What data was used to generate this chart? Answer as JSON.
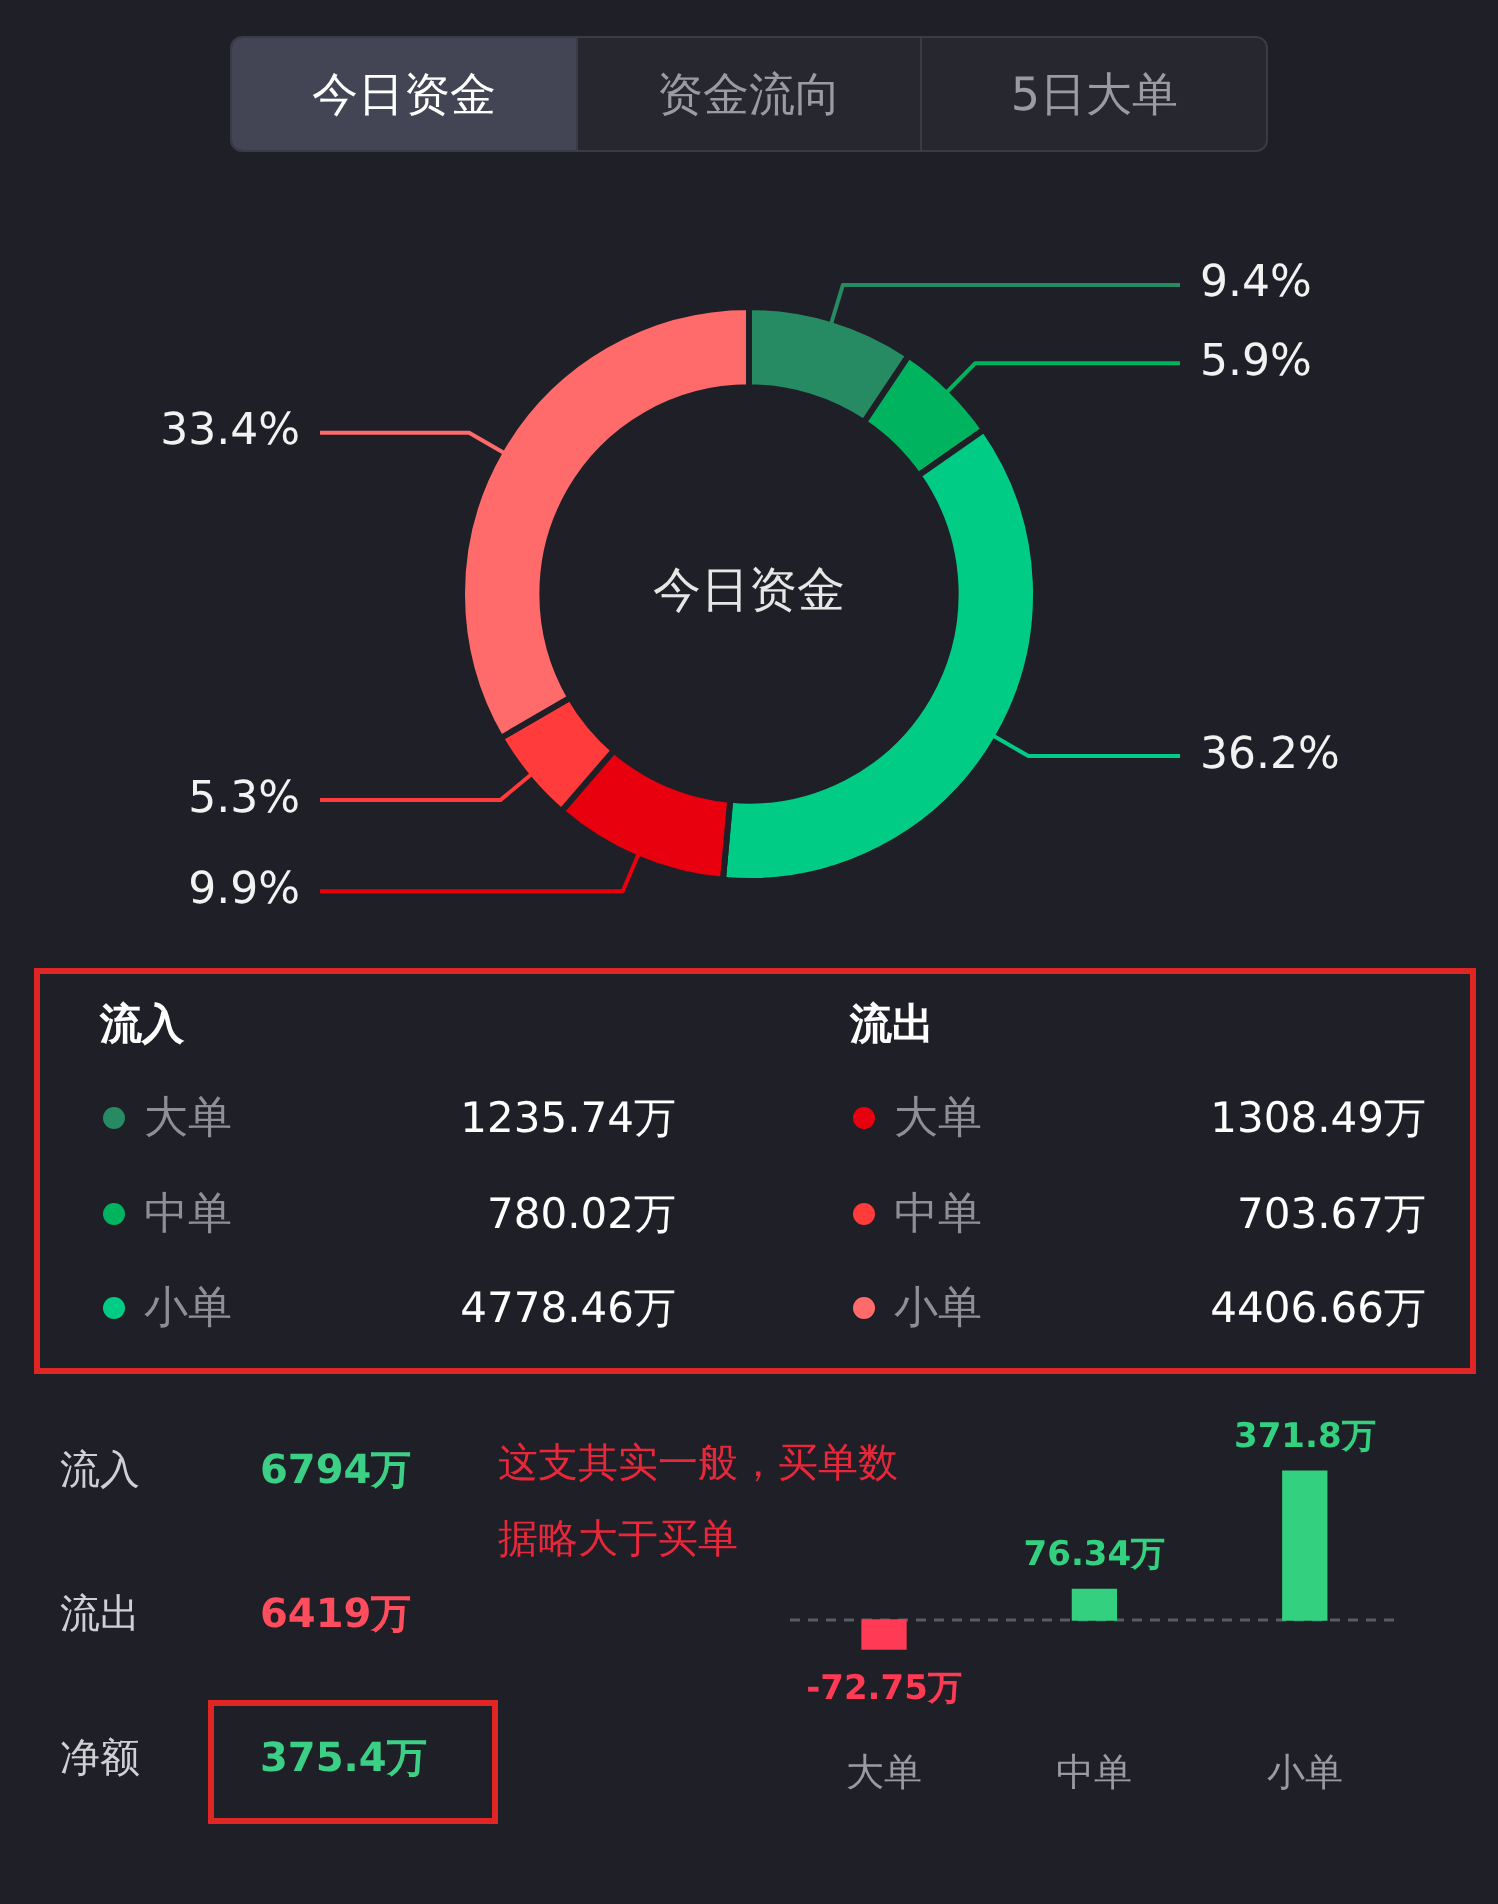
{
  "chart_data": [
    {
      "type": "other",
      "annotations": [
        "今日资金",
        "资金流向",
        "5日大单"
      ]
    },
    {
      "type": "donut",
      "title": "今日资金",
      "categories": [
        null,
        null,
        null,
        null,
        null,
        null
      ],
      "values": [
        9.4,
        5.9,
        36.2,
        9.9,
        5.3,
        33.4
      ],
      "colors": [
        "#268a63",
        "#00b35e",
        "#00cc85",
        "#e8000f",
        "#ff3b3b",
        "#ff6b6b"
      ],
      "value_labels": [
        "9.4%",
        "5.9%",
        "36.2%",
        "9.9%",
        "5.3%",
        "33.4%"
      ]
    },
    {
      "type": "other",
      "annotations": [
        "流入",
        "流出",
        "大单",
        "1235.74万",
        "大单",
        "1308.49万",
        "中单",
        "780.02万",
        "中单",
        "703.67万",
        "小单",
        "4778.46万",
        "小单",
        "4406.66万"
      ],
      "colors": [
        "#268a63",
        "#e8000f",
        "#00b35e",
        "#ff3b3b",
        "#00cc85",
        "#ff6b6b"
      ]
    },
    {
      "type": "other",
      "annotations": [
        "流入",
        "6794万",
        "流出",
        "6419万",
        "净额",
        "375.4万"
      ],
      "colors": [
        "#3ccf86",
        "#ff4d5e",
        "#3ccf86"
      ]
    },
    {
      "type": "bar",
      "categories": [
        "大单",
        "中单",
        "小单"
      ],
      "values": [
        -72.75,
        76.34,
        371.8
      ],
      "colors": [
        "#ff3a55",
        "#33d17f",
        "#33d17f"
      ],
      "value_labels": [
        "-72.75万",
        "76.34万",
        "371.8万"
      ],
      "ref_lines": [
        {
          "axis": "y",
          "value": 0,
          "color": "#5a5b66",
          "line_style": "dashed"
        }
      ],
      "annotations": [
        "这支其实一般，买单数据略大于买单"
      ],
      "grid": false,
      "legend": false
    }
  ]
}
